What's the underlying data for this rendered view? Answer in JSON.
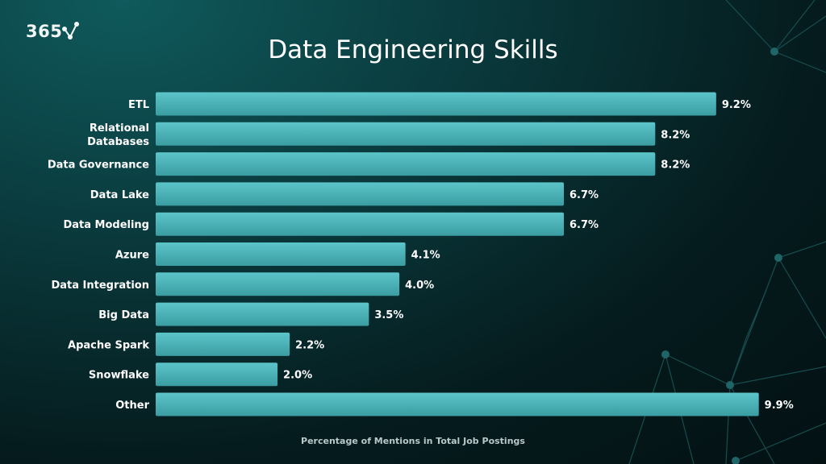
{
  "logo": {
    "text": "365"
  },
  "chart_data": {
    "type": "bar",
    "orientation": "horizontal",
    "title": "Data Engineering Skills",
    "xlabel": "Percentage of Mentions in Total Job Postings",
    "ylabel": "",
    "categories": [
      [
        "ETL"
      ],
      [
        "Relational",
        "Databases"
      ],
      [
        "Data Governance"
      ],
      [
        "Data Lake"
      ],
      [
        "Data Modeling"
      ],
      [
        "Azure"
      ],
      [
        "Data Integration"
      ],
      [
        "Big Data"
      ],
      [
        "Apache Spark"
      ],
      [
        "Snowflake"
      ],
      [
        "Other"
      ]
    ],
    "values": [
      9.2,
      8.2,
      8.2,
      6.7,
      6.7,
      4.1,
      4.0,
      3.5,
      2.2,
      2.0,
      9.9
    ],
    "value_labels": [
      "9.2%",
      "8.2%",
      "8.2%",
      "6.7%",
      "6.7%",
      "4.1%",
      "4.0%",
      "3.5%",
      "2.2%",
      "2.0%",
      "9.9%"
    ],
    "xlim": [
      0,
      10.5
    ],
    "grid": false,
    "colors": {
      "bar_top": "#5cc5c9",
      "bar_bottom": "#3a9da2"
    }
  }
}
